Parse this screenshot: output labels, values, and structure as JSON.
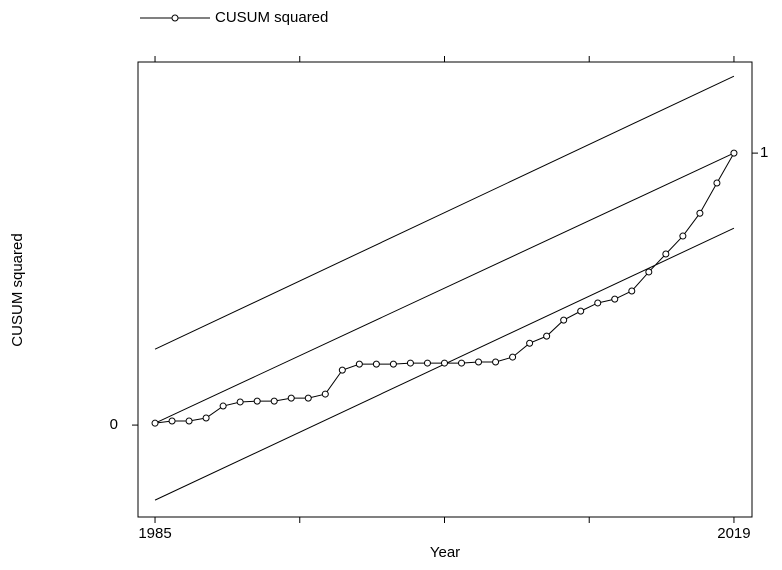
{
  "chart_data": {
    "type": "line",
    "xlabel": "Year",
    "ylabel": "CUSUM squared",
    "x": [
      1985,
      1986,
      1987,
      1988,
      1989,
      1990,
      1991,
      1992,
      1993,
      1994,
      1995,
      1996,
      1997,
      1998,
      1999,
      2000,
      2001,
      2002,
      2003,
      2004,
      2005,
      2006,
      2007,
      2008,
      2009,
      2010,
      2011,
      2012,
      2013,
      2014,
      2015,
      2016,
      2017,
      2018,
      2019
    ],
    "series": [
      {
        "name": "CUSUM squared",
        "color": "#000000",
        "values": [
          0.007,
          0.015,
          0.015,
          0.026,
          0.07,
          0.085,
          0.088,
          0.088,
          0.099,
          0.099,
          0.114,
          0.202,
          0.224,
          0.224,
          0.224,
          0.228,
          0.228,
          0.228,
          0.228,
          0.232,
          0.232,
          0.25,
          0.301,
          0.327,
          0.386,
          0.419,
          0.449,
          0.463,
          0.493,
          0.563,
          0.629,
          0.695,
          0.779,
          0.89,
          1
        ]
      }
    ],
    "bounds": [
      {
        "x": [
          1985,
          2019
        ],
        "values": [
          0.279,
          1.283
        ]
      },
      {
        "x": [
          1985,
          2019
        ],
        "values": [
          0.007,
          1
        ]
      },
      {
        "x": [
          1985,
          2019
        ],
        "values": [
          -0.276,
          0.724
        ]
      }
    ],
    "xlim": [
      1984,
      2020.06
    ],
    "ylim": [
      -0.338,
      1.335
    ],
    "xticks": [
      1985,
      {
        "value": 1993.5,
        "label": null
      },
      {
        "value": 2002,
        "label": null
      },
      {
        "value": 2010.5,
        "label": null
      },
      2019
    ],
    "yticks": [
      0
    ],
    "y2lim": [
      -0.338,
      1.335
    ],
    "y2ticks": [
      1
    ],
    "legend": "top-left"
  }
}
